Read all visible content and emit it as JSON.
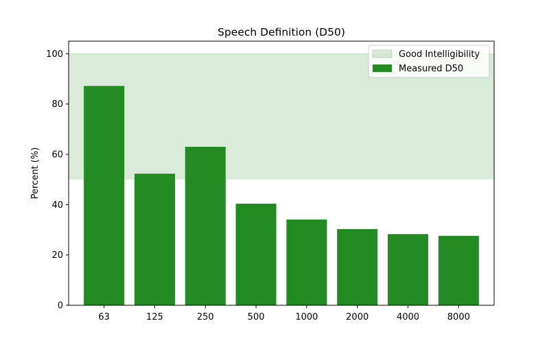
{
  "chart_data": {
    "type": "bar",
    "title": "Speech Definition (D50)",
    "xlabel": "",
    "ylabel": "Percent (%)",
    "categories": [
      "63",
      "125",
      "250",
      "500",
      "1000",
      "2000",
      "4000",
      "8000"
    ],
    "series": [
      {
        "name": "Measured D50",
        "values": [
          87.2,
          52.3,
          63.0,
          40.4,
          34.1,
          30.3,
          28.3,
          27.6
        ],
        "color": "#228b22"
      }
    ],
    "bands": [
      {
        "name": "Good Intelligibility",
        "y_from": 50,
        "y_to": 100,
        "color": "#228b22",
        "opacity": 0.17
      }
    ],
    "ylim": [
      0,
      105
    ],
    "yticks": [
      "0",
      "20",
      "40",
      "60",
      "80",
      "100"
    ],
    "grid": false,
    "legend": {
      "position": "top-right",
      "entries": [
        "Good Intelligibility",
        "Measured D50"
      ]
    }
  }
}
